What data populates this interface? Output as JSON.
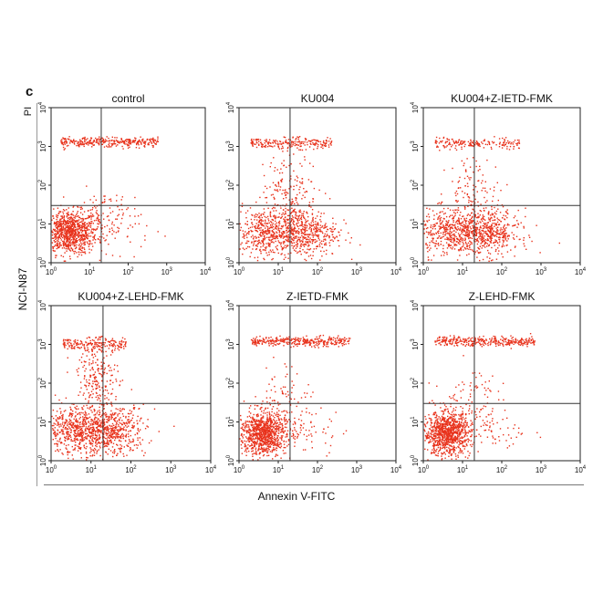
{
  "figure": {
    "panel_letter": "c",
    "y_side_label": "PI",
    "row_label": "NCI-N87",
    "x_axis_title": "Annexin V-FITC"
  },
  "chart_data": [
    {
      "type": "scatter",
      "title": "control",
      "xscale": "log",
      "yscale": "log",
      "xlim": [
        1,
        10000
      ],
      "ylim": [
        1,
        10000
      ],
      "quadrant_gates": {
        "x": 20,
        "y": 30
      },
      "clusters": [
        {
          "cx": 3,
          "cy": 6,
          "sx": 0.35,
          "sy": 0.28,
          "n": 900
        },
        {
          "cx": 20,
          "cy": 1300,
          "sx": 0.55,
          "sy": 0.06,
          "spanx": [
            1.8,
            600
          ],
          "n": 320
        },
        {
          "cx": 20,
          "cy": 20,
          "sx": 0.35,
          "sy": 0.3,
          "n": 60
        },
        {
          "cx": 40,
          "cy": 8,
          "sx": 0.5,
          "sy": 0.3,
          "n": 80
        }
      ]
    },
    {
      "type": "scatter",
      "title": "KU004",
      "xscale": "log",
      "yscale": "log",
      "xlim": [
        1,
        10000
      ],
      "ylim": [
        1,
        10000
      ],
      "quadrant_gates": {
        "x": 20,
        "y": 30
      },
      "clusters": [
        {
          "cx": 4,
          "cy": 6,
          "sx": 0.35,
          "sy": 0.3,
          "n": 380
        },
        {
          "cx": 40,
          "cy": 6,
          "sx": 0.45,
          "sy": 0.32,
          "n": 560
        },
        {
          "cx": 15,
          "cy": 1200,
          "sx": 0.5,
          "sy": 0.07,
          "spanx": [
            2,
            250
          ],
          "n": 220
        },
        {
          "cx": 20,
          "cy": 80,
          "sx": 0.35,
          "sy": 0.45,
          "n": 160
        }
      ]
    },
    {
      "type": "scatter",
      "title": "KU004+Z-IETD-FMK",
      "xscale": "log",
      "yscale": "log",
      "xlim": [
        1,
        10000
      ],
      "ylim": [
        1,
        10000
      ],
      "quadrant_gates": {
        "x": 20,
        "y": 30
      },
      "clusters": [
        {
          "cx": 4,
          "cy": 6,
          "sx": 0.35,
          "sy": 0.3,
          "n": 350
        },
        {
          "cx": 35,
          "cy": 6,
          "sx": 0.45,
          "sy": 0.3,
          "n": 600
        },
        {
          "cx": 15,
          "cy": 1200,
          "sx": 0.5,
          "sy": 0.07,
          "spanx": [
            2,
            300
          ],
          "n": 180
        },
        {
          "cx": 20,
          "cy": 70,
          "sx": 0.35,
          "sy": 0.45,
          "n": 120
        }
      ]
    },
    {
      "type": "scatter",
      "title": "KU004+Z-LEHD-FMK",
      "xscale": "log",
      "yscale": "log",
      "xlim": [
        1,
        10000
      ],
      "ylim": [
        1,
        10000
      ],
      "quadrant_gates": {
        "x": 20,
        "y": 30
      },
      "clusters": [
        {
          "cx": 4,
          "cy": 6,
          "sx": 0.4,
          "sy": 0.3,
          "n": 500
        },
        {
          "cx": 30,
          "cy": 6,
          "sx": 0.45,
          "sy": 0.32,
          "n": 600
        },
        {
          "cx": 20,
          "cy": 1000,
          "sx": 0.3,
          "sy": 0.08,
          "spanx": [
            2,
            80
          ],
          "n": 200
        },
        {
          "cx": 15,
          "cy": 150,
          "sx": 0.25,
          "sy": 0.4,
          "n": 200
        }
      ]
    },
    {
      "type": "scatter",
      "title": "Z-IETD-FMK",
      "xscale": "log",
      "yscale": "log",
      "xlim": [
        1,
        10000
      ],
      "ylim": [
        1,
        10000
      ],
      "quadrant_gates": {
        "x": 20,
        "y": 30
      },
      "clusters": [
        {
          "cx": 4,
          "cy": 5,
          "sx": 0.3,
          "sy": 0.28,
          "n": 950
        },
        {
          "cx": 60,
          "cy": 1200,
          "sx": 0.55,
          "sy": 0.06,
          "spanx": [
            2,
            700
          ],
          "n": 330
        },
        {
          "cx": 15,
          "cy": 40,
          "sx": 0.35,
          "sy": 0.45,
          "n": 90
        },
        {
          "cx": 50,
          "cy": 6,
          "sx": 0.5,
          "sy": 0.3,
          "n": 70
        }
      ]
    },
    {
      "type": "scatter",
      "title": "Z-LEHD-FMK",
      "xscale": "log",
      "yscale": "log",
      "xlim": [
        1,
        10000
      ],
      "ylim": [
        1,
        10000
      ],
      "quadrant_gates": {
        "x": 20,
        "y": 30
      },
      "clusters": [
        {
          "cx": 4,
          "cy": 5,
          "sx": 0.3,
          "sy": 0.28,
          "n": 950
        },
        {
          "cx": 60,
          "cy": 1200,
          "sx": 0.55,
          "sy": 0.06,
          "spanx": [
            2,
            700
          ],
          "n": 330
        },
        {
          "cx": 15,
          "cy": 40,
          "sx": 0.35,
          "sy": 0.45,
          "n": 90
        },
        {
          "cx": 50,
          "cy": 6,
          "sx": 0.5,
          "sy": 0.3,
          "n": 70
        }
      ]
    }
  ],
  "colors": {
    "dots": "#e8321c",
    "gate": "#333333",
    "frame": "#222222"
  }
}
